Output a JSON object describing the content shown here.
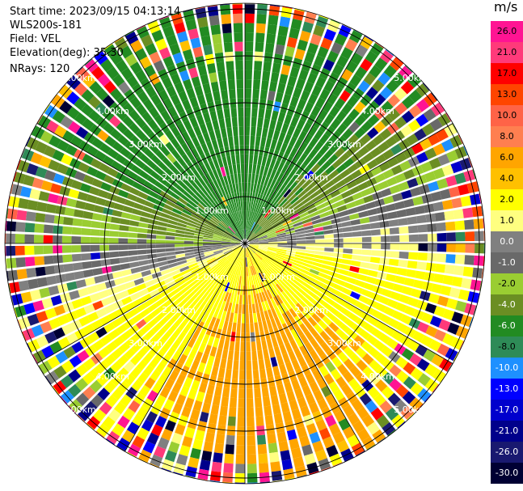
{
  "header": {
    "start_time": "Start time: 2023/09/15 04:13:14",
    "instrument": "WLS200s-181",
    "field": "Field: VEL",
    "elevation": "Elevation(deg): 35.30",
    "nrays": "NRays: 120"
  },
  "ring_labels": {
    "r1": "1.00km",
    "r2": "2.00km",
    "r3": "3.00km",
    "r4": "4.00km",
    "r5": "5.00km"
  },
  "colorbar": {
    "unit": "m/s",
    "bins": [
      {
        "label": "26.0",
        "color": "#ff1493"
      },
      {
        "label": "21.0",
        "color": "#ff3a7a"
      },
      {
        "label": "17.0",
        "color": "#ff0000"
      },
      {
        "label": "13.0",
        "color": "#ff4500"
      },
      {
        "label": "10.0",
        "color": "#ff6347"
      },
      {
        "label": "8.0",
        "color": "#ff7f50"
      },
      {
        "label": "6.0",
        "color": "#ffa500"
      },
      {
        "label": "4.0",
        "color": "#ffc000"
      },
      {
        "label": "2.0",
        "color": "#ffff00"
      },
      {
        "label": "1.0",
        "color": "#ffff80"
      },
      {
        "label": "0.0",
        "color": "#808080"
      },
      {
        "label": "-1.0",
        "color": "#696969"
      },
      {
        "label": "-2.0",
        "color": "#9acd32"
      },
      {
        "label": "-4.0",
        "color": "#6b8e23"
      },
      {
        "label": "-6.0",
        "color": "#228b22"
      },
      {
        "label": "-8.0",
        "color": "#2e8b57"
      },
      {
        "label": "-10.0",
        "color": "#1e90ff"
      },
      {
        "label": "-13.0",
        "color": "#0000ff"
      },
      {
        "label": "-17.0",
        "color": "#0000cd"
      },
      {
        "label": "-21.0",
        "color": "#00008b"
      },
      {
        "label": "-26.0",
        "color": "#191970"
      },
      {
        "label": "-30.0",
        "color": "#000033"
      }
    ]
  }
}
